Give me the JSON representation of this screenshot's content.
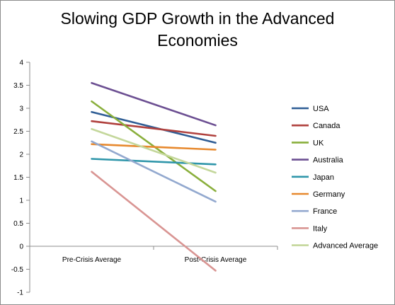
{
  "chart_data": {
    "type": "line",
    "title": "Slowing GDP Growth in the Advanced\nEconomies",
    "categories": [
      "Pre-Crisis Average",
      "Post-Crisis Average"
    ],
    "ylim": [
      -1,
      4
    ],
    "yticks": [
      -1,
      -0.5,
      0,
      0.5,
      1,
      1.5,
      2,
      2.5,
      3,
      3.5,
      4
    ],
    "ytick_labels": [
      "-1",
      "-0.5",
      "0",
      "0.5",
      "1",
      "1.5",
      "2",
      "2.5",
      "3",
      "3.5",
      "4"
    ],
    "grid": false,
    "legend": "right",
    "series": [
      {
        "name": "USA",
        "color": "#2f5d95",
        "values": [
          2.92,
          2.25
        ]
      },
      {
        "name": "Canada",
        "color": "#b0413e",
        "values": [
          2.72,
          2.4
        ]
      },
      {
        "name": "UK",
        "color": "#8aaf3c",
        "values": [
          3.15,
          1.2
        ]
      },
      {
        "name": "Australia",
        "color": "#6c4f92",
        "values": [
          3.55,
          2.63
        ]
      },
      {
        "name": "Japan",
        "color": "#2f96aa",
        "values": [
          1.9,
          1.78
        ]
      },
      {
        "name": "Germany",
        "color": "#e7892e",
        "values": [
          2.22,
          2.1
        ]
      },
      {
        "name": "France",
        "color": "#93a9cf",
        "values": [
          2.28,
          0.97
        ]
      },
      {
        "name": "Italy",
        "color": "#d99593",
        "values": [
          1.62,
          -0.53
        ]
      },
      {
        "name": "Advanced Average",
        "color": "#c4d79b",
        "values": [
          2.55,
          1.6
        ]
      }
    ]
  }
}
